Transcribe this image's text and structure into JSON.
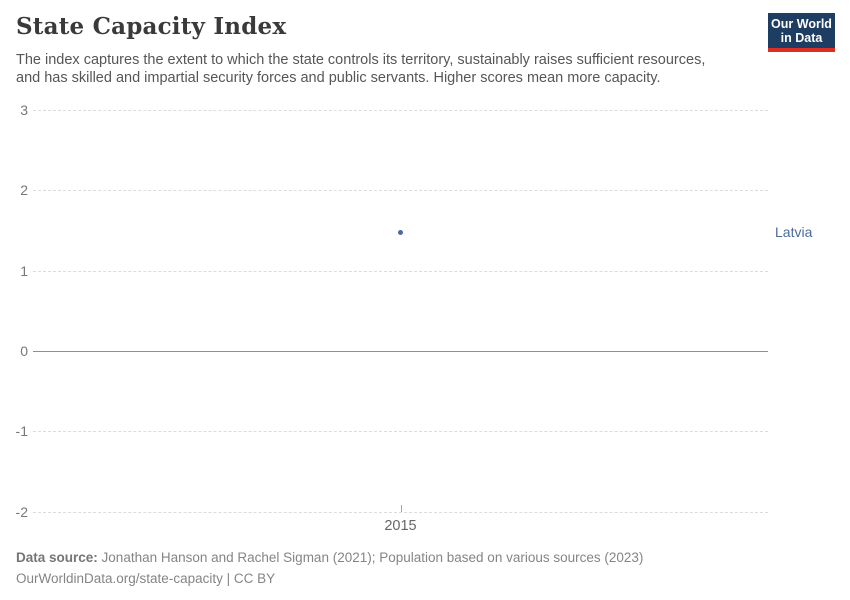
{
  "header": {
    "title": "State Capacity Index",
    "subtitle_lines": [
      "The index captures the extent to which the state controls its territory, sustainably raises sufficient resources,",
      "and has skilled and impartial security forces and public servants. Higher scores mean more capacity."
    ],
    "logo": {
      "line1": "Our World",
      "line2": "in Data",
      "bg_color": "#1d3d63",
      "bar_color": "#dc2e22"
    }
  },
  "chart_data": {
    "type": "scatter",
    "title": "State Capacity Index",
    "xlabel": "",
    "ylabel": "",
    "series": [
      {
        "name": "Latvia",
        "x": [
          2015
        ],
        "y": [
          1.48
        ]
      }
    ],
    "xticks": [
      "2015"
    ],
    "yticks": [
      3,
      2,
      1,
      0,
      -1,
      -2
    ],
    "ylim": [
      -2,
      3
    ],
    "grid": true,
    "zero_line": true,
    "legend_position": "right-of-point",
    "point_color": "#4c6a9c",
    "label_color": "#4c6a9c"
  },
  "footer": {
    "source_label": "Data source:",
    "source_text": "Jonathan Hanson and Rachel Sigman (2021); Population based on various sources (2023)",
    "license_link": "OurWorldinData.org/state-capacity",
    "license_sep": "|",
    "license_text": "CC BY"
  }
}
